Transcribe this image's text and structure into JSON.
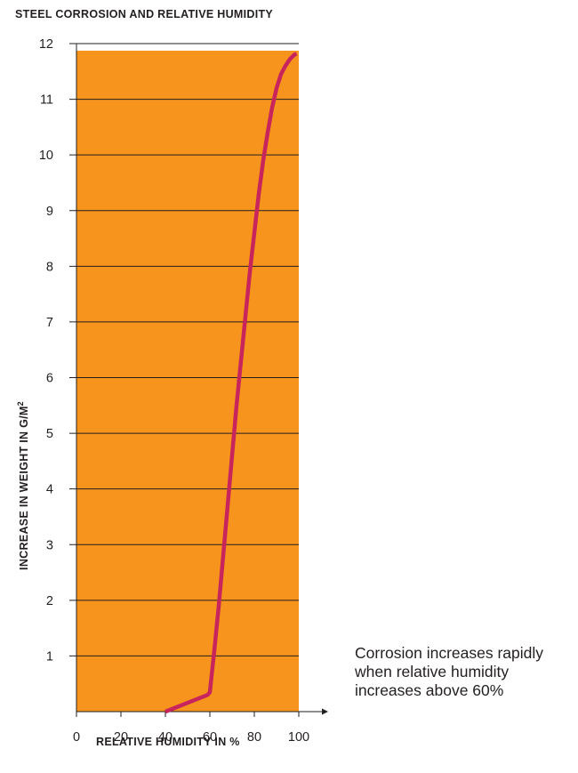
{
  "chart_data": {
    "type": "line",
    "title": "STEEL CORROSION AND RELATIVE HUMIDITY",
    "xlabel": "RELATIVE HUMIDITY IN %",
    "ylabel": "INCREASE IN WEIGHT IN G/M",
    "ylabel_superscript": "2",
    "xlim": [
      0,
      100
    ],
    "ylim": [
      0,
      12
    ],
    "x_ticks": [
      "0",
      "20",
      "40",
      "60",
      "80",
      "100"
    ],
    "y_ticks": [
      "1",
      "2",
      "3",
      "4",
      "5",
      "6",
      "7",
      "8",
      "9",
      "10",
      "11",
      "12"
    ],
    "grid": "horizontal",
    "colors": {
      "background": "#f7941d",
      "line": "#c8255c",
      "grid": "#231f20"
    },
    "series": [
      {
        "x": [
          40,
          59,
          60,
          62,
          64,
          66,
          68,
          70,
          72,
          74,
          76,
          78,
          80,
          82,
          84,
          86,
          88,
          90,
          92,
          94,
          96,
          98,
          99
        ],
        "values": [
          0,
          0.3,
          0.35,
          1.1,
          1.9,
          2.8,
          3.7,
          4.6,
          5.5,
          6.3,
          7.1,
          7.9,
          8.6,
          9.3,
          9.9,
          10.4,
          10.85,
          11.2,
          11.45,
          11.6,
          11.72,
          11.8,
          11.82
        ]
      }
    ],
    "annotation": [
      "Corrosion increases rapidly",
      "when relative humidity",
      "increases above 60%"
    ]
  }
}
